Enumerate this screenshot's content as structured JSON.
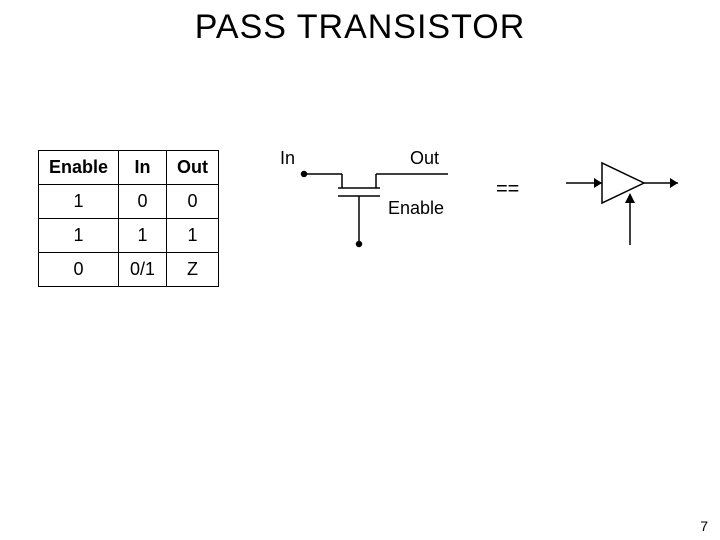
{
  "title": "PASS TRANSISTOR",
  "table": {
    "headers": [
      "Enable",
      "In",
      "Out"
    ],
    "rows": [
      [
        "1",
        "0",
        "0"
      ],
      [
        "1",
        "1",
        "1"
      ],
      [
        "0",
        "0/1",
        "Z"
      ]
    ]
  },
  "pass": {
    "in_label": "In",
    "out_label": "Out",
    "enable_label": "Enable",
    "stroke": "#000000",
    "stroke_width": 1.5,
    "dot_radius": 2.5
  },
  "equals": "==",
  "buffer": {
    "stroke": "#000000",
    "stroke_width": 1.5
  },
  "page_number": "7",
  "colors": {
    "bg": "#ffffff",
    "text": "#000000",
    "border": "#000000"
  }
}
